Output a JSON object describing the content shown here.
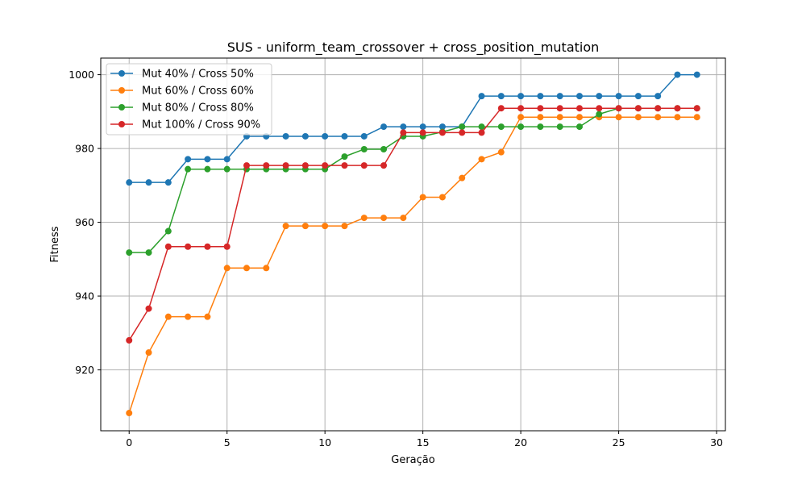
{
  "chart_data": {
    "type": "line",
    "title": "SUS - uniform_team_crossover + cross_position_mutation",
    "xlabel": "Geração",
    "ylabel": "Fitness",
    "xlim": [
      -1.45,
      30.45
    ],
    "ylim": [
      903.5,
      1004.5
    ],
    "xticks": [
      0,
      5,
      10,
      15,
      20,
      25,
      30
    ],
    "yticks": [
      920,
      940,
      960,
      980,
      1000
    ],
    "grid": true,
    "legend_position": "top-left",
    "x": [
      0,
      1,
      2,
      3,
      4,
      5,
      6,
      7,
      8,
      9,
      10,
      11,
      12,
      13,
      14,
      15,
      16,
      17,
      18,
      19,
      20,
      21,
      22,
      23,
      24,
      25,
      26,
      27,
      28,
      29
    ],
    "series": [
      {
        "name": "Mut 40% / Cross 50%",
        "color": "#1f77b4",
        "values": [
          970.8,
          970.8,
          970.8,
          977.1,
          977.1,
          977.1,
          983.3,
          983.3,
          983.3,
          983.3,
          983.3,
          983.3,
          983.3,
          985.9,
          985.9,
          985.9,
          985.9,
          985.9,
          994.2,
          994.2,
          994.2,
          994.2,
          994.2,
          994.2,
          994.2,
          994.2,
          994.2,
          994.2,
          1000,
          1000
        ]
      },
      {
        "name": "Mut 60% / Cross 60%",
        "color": "#ff7f0e",
        "values": [
          908.3,
          924.7,
          934.4,
          934.4,
          934.4,
          947.6,
          947.6,
          947.6,
          959.0,
          959.0,
          959.0,
          959.0,
          961.2,
          961.2,
          961.2,
          966.8,
          966.8,
          972.0,
          977.1,
          979.0,
          988.5,
          988.5,
          988.5,
          988.5,
          988.5,
          988.5,
          988.5,
          988.5,
          988.5,
          988.5
        ]
      },
      {
        "name": "Mut 80% / Cross 80%",
        "color": "#2ca02c",
        "values": [
          951.8,
          951.8,
          957.6,
          974.4,
          974.4,
          974.4,
          974.4,
          974.4,
          974.4,
          974.4,
          974.4,
          977.8,
          979.8,
          979.8,
          983.3,
          983.3,
          984.5,
          985.9,
          985.9,
          985.9,
          985.9,
          985.9,
          985.9,
          985.9,
          989.3,
          990.9,
          990.9,
          990.9,
          990.9,
          990.9
        ]
      },
      {
        "name": "Mut 100% / Cross 90%",
        "color": "#d62728",
        "values": [
          928.0,
          936.6,
          953.4,
          953.4,
          953.4,
          953.4,
          975.4,
          975.4,
          975.4,
          975.4,
          975.4,
          975.4,
          975.4,
          975.4,
          984.3,
          984.3,
          984.3,
          984.3,
          984.3,
          990.9,
          990.9,
          990.9,
          990.9,
          990.9,
          990.9,
          990.9,
          990.9,
          990.9,
          990.9,
          990.9
        ]
      }
    ]
  }
}
